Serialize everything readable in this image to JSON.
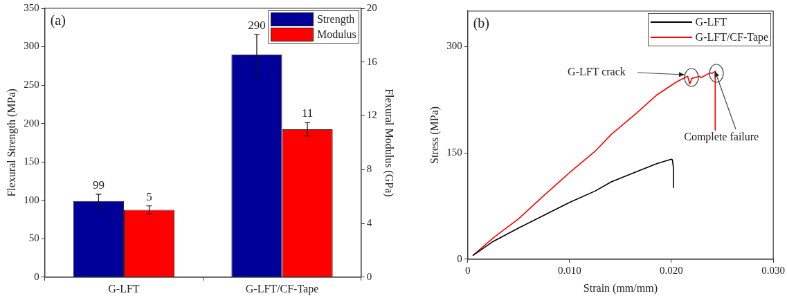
{
  "chart_data": [
    {
      "type": "bar",
      "categories": [
        "G-LFT",
        "G-LFT/CF-Tape"
      ],
      "ylabel": "Flexural Strength (MPa)",
      "y2label": "Flexural Modulus (GPa)",
      "annotations": [
        "(a)"
      ],
      "series": [
        {
          "name": "Strength",
          "color": "#000099",
          "values": [
            99,
            290
          ],
          "errors": [
            9,
            26
          ]
        },
        {
          "name": "Modulus",
          "color": "#ff0000",
          "values": [
            5,
            11
          ],
          "errors": [
            0.3,
            0.5
          ],
          "axis": "y2"
        }
      ],
      "ylim": [
        0,
        350
      ],
      "yticks": [
        0,
        50,
        100,
        150,
        200,
        250,
        300,
        350
      ],
      "y2lim": [
        0,
        20
      ],
      "y2ticks": [
        0,
        4,
        8,
        12,
        16,
        20
      ],
      "data_labels": true,
      "legend": "top right"
    },
    {
      "type": "line",
      "xlabel": "Strain (mm/mm)",
      "ylabel": "Stress (MPa)",
      "annotations": [
        "(b)",
        {
          "text": "G-LFT crack",
          "x": 0.0213,
          "y": 260
        },
        {
          "text": "Complete failure",
          "x": 0.0243,
          "y": 265
        }
      ],
      "series": [
        {
          "name": "G-LFT",
          "color": "#000000",
          "x": [
            0.0005,
            0.0025,
            0.005,
            0.0075,
            0.01,
            0.0125,
            0.0141,
            0.0165,
            0.0186,
            0.02,
            0.0201,
            0.0202,
            0.0202
          ],
          "values": [
            5,
            25,
            44,
            62,
            80,
            96,
            109,
            123,
            135,
            141,
            140,
            129,
            101
          ]
        },
        {
          "name": "G-LFT/CF-Tape",
          "color": "#ff0000",
          "x": [
            0.0005,
            0.0025,
            0.005,
            0.0075,
            0.01,
            0.0125,
            0.0141,
            0.0165,
            0.0186,
            0.0205,
            0.0216,
            0.0218,
            0.022,
            0.0228,
            0.0229,
            0.0238,
            0.024,
            0.0243,
            0.0243
          ],
          "values": [
            5,
            30,
            57,
            90,
            122,
            152,
            176,
            205,
            232,
            250,
            258,
            247,
            255,
            258,
            256,
            263,
            262,
            265,
            182
          ]
        }
      ],
      "xlim": [
        0,
        0.03
      ],
      "xticks": [
        0,
        {
          "value": 0.01,
          "label": "0.010"
        },
        {
          "value": 0.02,
          "label": "0.020"
        },
        {
          "value": 0.03,
          "label": "0.030"
        }
      ],
      "ylim": [
        0,
        350
      ],
      "yticks": [
        0,
        150,
        300
      ],
      "legend": "top right",
      "marker": "none"
    }
  ]
}
